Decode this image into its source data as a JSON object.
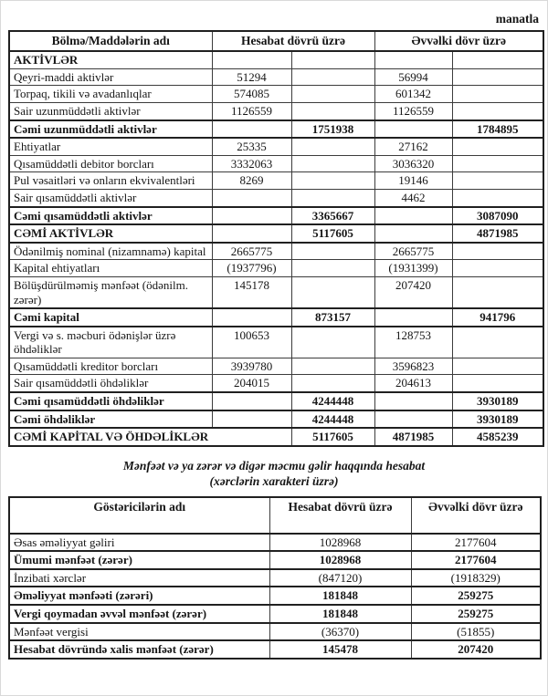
{
  "page": {
    "unit_label": "manatla"
  },
  "balance_table": {
    "headers": {
      "name": "Bölmə/Maddələrin adı",
      "current": "Hesabat dövrü üzrə",
      "previous": "Əvvəlki dövr üzrə"
    },
    "rows": [
      {
        "label": "AKTİVLƏR",
        "label_bold": true,
        "cells": [
          "",
          "",
          "",
          ""
        ]
      },
      {
        "label": "Qeyri-maddi aktivlər",
        "cells": [
          "51294",
          "",
          "56994",
          ""
        ]
      },
      {
        "label": "Torpaq, tikili və avadanlıqlar",
        "cells": [
          "574085",
          "",
          "601342",
          ""
        ]
      },
      {
        "label": "Sair uzunmüddətli aktivlər",
        "cells": [
          "1126559",
          "",
          "1126559",
          ""
        ]
      },
      {
        "label": "Cəmi uzunmüddətli aktivlər",
        "total": true,
        "cells": [
          "",
          "1751938",
          "",
          "1784895"
        ]
      },
      {
        "label": "Ehtiyatlar",
        "cells": [
          "25335",
          "",
          "27162",
          ""
        ]
      },
      {
        "label": "Qısamüddətli debitor borcları",
        "cells": [
          "3332063",
          "",
          "3036320",
          ""
        ]
      },
      {
        "label": "Pul vəsaitləri və onların ekvivalentləri",
        "cells": [
          "8269",
          "",
          "19146",
          ""
        ]
      },
      {
        "label": "Sair qısamüddətli aktivlər",
        "cells": [
          "",
          "",
          "4462",
          ""
        ]
      },
      {
        "label": "Cəmi qısamüddətli aktivlər",
        "total": true,
        "cells": [
          "",
          "3365667",
          "",
          "3087090"
        ]
      },
      {
        "label": "CƏMİ AKTİVLƏR",
        "total": true,
        "cells": [
          "",
          "5117605",
          "",
          "4871985"
        ]
      },
      {
        "label": "Ödənilmiş nominal (nizamnamə) kapital",
        "cells": [
          "2665775",
          "",
          "2665775",
          ""
        ]
      },
      {
        "label": "Kapital ehtiyatları",
        "cells": [
          "(1937796)",
          "",
          "(1931399)",
          ""
        ]
      },
      {
        "label": "Bölüşdürülməmiş mənfəət (ödənilm. zərər)",
        "cells": [
          "145178",
          "",
          "207420",
          ""
        ]
      },
      {
        "label": "Cəmi kapital",
        "total": true,
        "cells": [
          "",
          "873157",
          "",
          "941796"
        ]
      },
      {
        "label": "Vergi və s. məcburi ödənişlər üzrə öhdəliklər",
        "cells": [
          "100653",
          "",
          "128753",
          ""
        ]
      },
      {
        "label": "Qısamüddətli kreditor borcları",
        "cells": [
          "3939780",
          "",
          "3596823",
          ""
        ]
      },
      {
        "label": "Sair qısamüddətli öhdəliklər",
        "cells": [
          "204015",
          "",
          "204613",
          ""
        ]
      },
      {
        "label": "Cəmi qısamüddətli öhdəliklər",
        "total": true,
        "cells": [
          "",
          "4244448",
          "",
          "3930189"
        ]
      },
      {
        "label": "Cəmi öhdəliklər",
        "total": true,
        "cells": [
          "",
          "4244448",
          "",
          "3930189"
        ]
      },
      {
        "label": "CƏMİ KAPİTAL VƏ ÖHDƏLİKLƏR",
        "total": true,
        "name_colspan": 2,
        "cells": [
          "5117605",
          "4871985",
          "4585239"
        ]
      }
    ]
  },
  "income_statement": {
    "title_line1": "Mənfəət və ya zərər və digər məcmu gəlir haqqında hesabat",
    "title_line2": "(xərclərin xarakteri üzrə)",
    "headers": {
      "name": "Göstəricilərin adı",
      "current": "Hesabat dövrü üzrə",
      "previous": "Əvvəlki dövr üzrə"
    },
    "rows": [
      {
        "label": "Əsas əməliyyat gəliri",
        "cells": [
          "1028968",
          "2177604"
        ]
      },
      {
        "label": "Ümumi mənfəət (zərər)",
        "total": true,
        "cells": [
          "1028968",
          "2177604"
        ]
      },
      {
        "label": "İnzibati xərclər",
        "cells": [
          "(847120)",
          "(1918329)"
        ]
      },
      {
        "label": "Əməliyyat mənfəəti (zərəri)",
        "total": true,
        "cells": [
          "181848",
          "259275"
        ]
      },
      {
        "label": "Vergi qoymadan əvvəl mənfəət (zərər)",
        "total": true,
        "cells": [
          "181848",
          "259275"
        ]
      },
      {
        "label": "Mənfəət vergisi",
        "cells": [
          "(36370)",
          "(51855)"
        ]
      },
      {
        "label": "Hesabat dövründə xalis mənfəət (zərər)",
        "total": true,
        "cells": [
          "145478",
          "207420"
        ]
      }
    ]
  }
}
